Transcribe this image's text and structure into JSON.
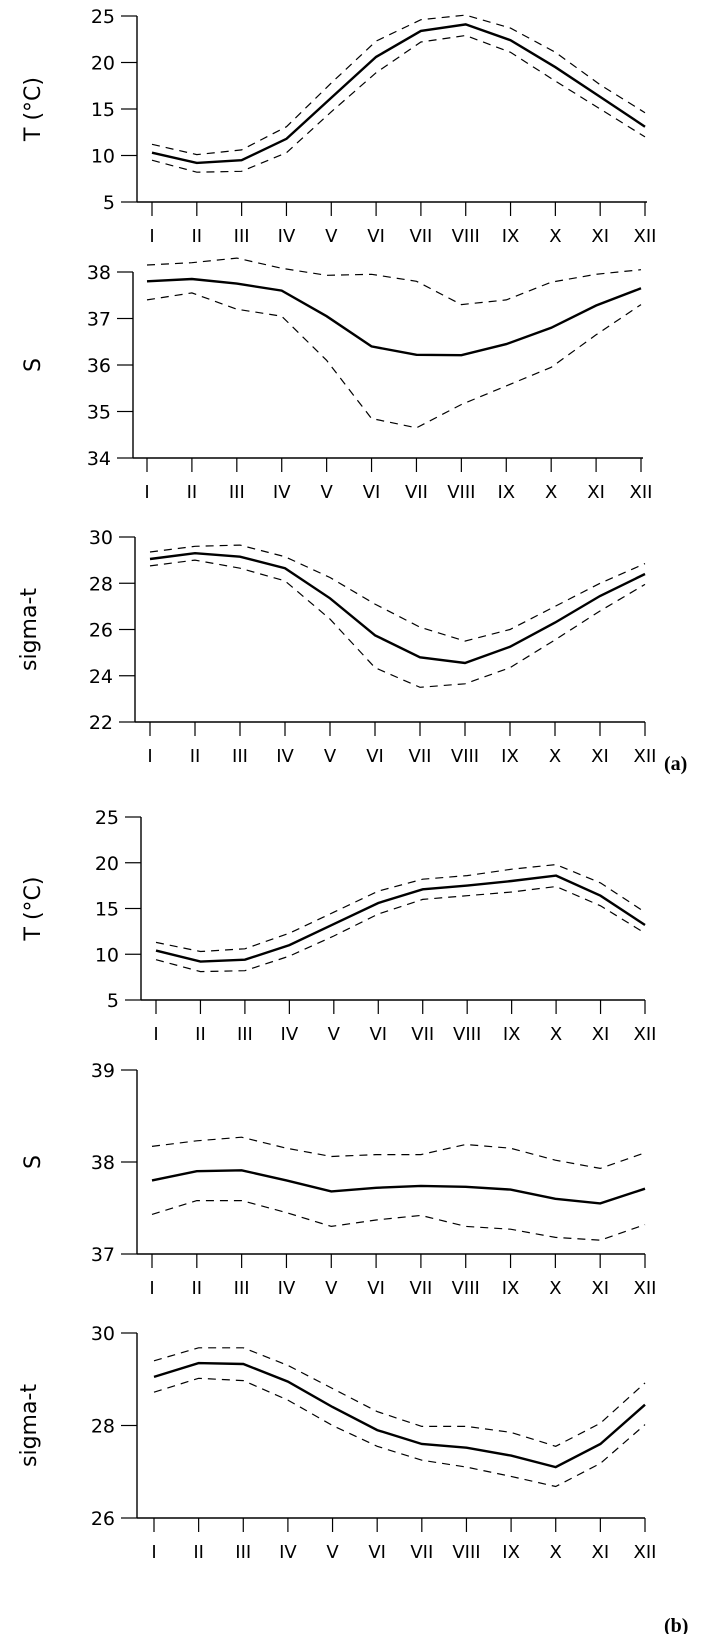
{
  "chart_data": [
    {
      "type": "line",
      "ylabel": "T (°C)",
      "ylim": [
        5,
        25
      ],
      "yticks": [
        5,
        10,
        15,
        20,
        25
      ],
      "categories": [
        "I",
        "II",
        "III",
        "IV",
        "V",
        "VI",
        "VII",
        "VIII",
        "IX",
        "X",
        "XI",
        "XII"
      ],
      "series": [
        {
          "values": [
            10.3,
            9.2,
            9.5,
            11.8,
            16.2,
            20.6,
            23.4,
            24.1,
            22.4,
            19.5,
            16.3,
            13.1
          ]
        },
        {
          "values": [
            11.2,
            10.1,
            10.6,
            13.1,
            17.8,
            22.3,
            24.6,
            25.1,
            23.7,
            21.1,
            17.6,
            14.6
          ]
        },
        {
          "values": [
            9.5,
            8.2,
            8.3,
            10.3,
            14.7,
            18.9,
            22.2,
            22.9,
            21.1,
            18.0,
            15.0,
            12.0
          ]
        }
      ],
      "tag": ""
    },
    {
      "type": "line",
      "ylabel": "S",
      "ylim": [
        34,
        38
      ],
      "yticks": [
        34,
        35,
        36,
        37,
        38
      ],
      "categories": [
        "I",
        "II",
        "III",
        "IV",
        "V",
        "VI",
        "VII",
        "VIII",
        "IX",
        "X",
        "XI",
        "XII"
      ],
      "series": [
        {
          "values": [
            37.8,
            37.85,
            37.75,
            37.6,
            37.05,
            36.4,
            36.22,
            36.21,
            36.45,
            36.8,
            37.28,
            37.65
          ]
        },
        {
          "values": [
            38.15,
            38.2,
            38.3,
            38.08,
            37.93,
            37.95,
            37.8,
            37.3,
            37.4,
            37.78,
            37.95,
            38.05
          ]
        },
        {
          "values": [
            37.4,
            37.55,
            37.2,
            37.05,
            36.1,
            34.85,
            34.65,
            35.15,
            35.55,
            35.95,
            36.65,
            37.3
          ]
        }
      ],
      "tag": ""
    },
    {
      "type": "line",
      "ylabel": "sigma-t",
      "ylim": [
        22,
        30
      ],
      "yticks": [
        22,
        24,
        26,
        28,
        30
      ],
      "categories": [
        "I",
        "II",
        "III",
        "IV",
        "V",
        "VI",
        "VII",
        "VIII",
        "IX",
        "X",
        "XI",
        "XII"
      ],
      "series": [
        {
          "values": [
            29.05,
            29.3,
            29.15,
            28.65,
            27.35,
            25.75,
            24.8,
            24.55,
            25.25,
            26.3,
            27.45,
            28.4
          ]
        },
        {
          "values": [
            29.35,
            29.6,
            29.65,
            29.15,
            28.25,
            27.1,
            26.1,
            25.5,
            26.0,
            27.0,
            28.0,
            28.85
          ]
        },
        {
          "values": [
            28.75,
            29.0,
            28.65,
            28.1,
            26.45,
            24.35,
            23.5,
            23.65,
            24.35,
            25.55,
            26.8,
            27.95
          ]
        }
      ],
      "tag": "(a)"
    },
    {
      "type": "line",
      "ylabel": "T (°C)",
      "ylim": [
        5,
        25
      ],
      "yticks": [
        5,
        10,
        15,
        20,
        25
      ],
      "categories": [
        "I",
        "II",
        "III",
        "IV",
        "V",
        "VI",
        "VII",
        "VIII",
        "IX",
        "X",
        "XI",
        "XII"
      ],
      "series": [
        {
          "values": [
            10.4,
            9.2,
            9.4,
            11.0,
            13.3,
            15.6,
            17.1,
            17.5,
            18.0,
            18.6,
            16.4,
            13.2
          ]
        },
        {
          "values": [
            11.3,
            10.3,
            10.6,
            12.3,
            14.6,
            16.9,
            18.2,
            18.6,
            19.3,
            19.8,
            17.8,
            14.6
          ]
        },
        {
          "values": [
            9.4,
            8.1,
            8.2,
            9.8,
            12.0,
            14.4,
            16.0,
            16.4,
            16.8,
            17.4,
            15.3,
            12.3
          ]
        }
      ],
      "tag": ""
    },
    {
      "type": "line",
      "ylabel": "S",
      "ylim": [
        37,
        39
      ],
      "yticks": [
        37,
        38,
        39
      ],
      "categories": [
        "I",
        "II",
        "III",
        "IV",
        "V",
        "VI",
        "VII",
        "VIII",
        "IX",
        "X",
        "XI",
        "XII"
      ],
      "series": [
        {
          "values": [
            37.8,
            37.9,
            37.91,
            37.8,
            37.68,
            37.72,
            37.74,
            37.73,
            37.7,
            37.6,
            37.55,
            37.71
          ]
        },
        {
          "values": [
            38.17,
            38.23,
            38.27,
            38.15,
            38.06,
            38.08,
            38.08,
            38.19,
            38.15,
            38.02,
            37.93,
            38.1
          ]
        },
        {
          "values": [
            37.43,
            37.58,
            37.58,
            37.45,
            37.3,
            37.37,
            37.42,
            37.3,
            37.27,
            37.18,
            37.15,
            37.32
          ]
        }
      ],
      "tag": ""
    },
    {
      "type": "line",
      "ylabel": "sigma-t",
      "ylim": [
        26,
        30
      ],
      "yticks": [
        26,
        28,
        30
      ],
      "categories": [
        "I",
        "II",
        "III",
        "IV",
        "V",
        "VI",
        "VII",
        "VIII",
        "IX",
        "X",
        "XI",
        "XII"
      ],
      "series": [
        {
          "values": [
            29.05,
            29.35,
            29.33,
            28.95,
            28.4,
            27.9,
            27.6,
            27.52,
            27.35,
            27.1,
            27.6,
            28.45
          ]
        },
        {
          "values": [
            29.4,
            29.68,
            29.68,
            29.3,
            28.8,
            28.3,
            27.98,
            27.98,
            27.85,
            27.55,
            28.05,
            28.92
          ]
        },
        {
          "values": [
            28.72,
            29.02,
            28.97,
            28.55,
            28.0,
            27.55,
            27.25,
            27.1,
            26.9,
            26.68,
            27.18,
            28.02
          ]
        }
      ],
      "tag": "(b)"
    }
  ]
}
